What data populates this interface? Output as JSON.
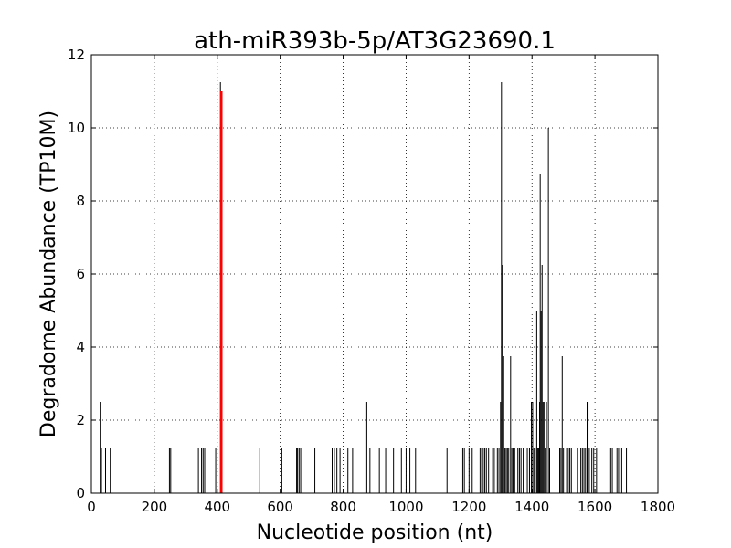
{
  "chart_data": {
    "type": "bar",
    "title": "ath-miR393b-5p/AT3G23690.1",
    "xlabel": "Nucleotide position (nt)",
    "ylabel": "Degradome Abundance (TP10M)",
    "xlim": [
      0,
      1800
    ],
    "ylim": [
      0,
      12
    ],
    "xticks": [
      0,
      200,
      400,
      600,
      800,
      1000,
      1200,
      1400,
      1600,
      1800
    ],
    "yticks": [
      0,
      2,
      4,
      6,
      8,
      10,
      12
    ],
    "grid": true,
    "colors": {
      "series": "#000000",
      "target": "#ff0000"
    },
    "series": [
      {
        "points": [
          [
            28,
            2.5
          ],
          [
            32,
            1.25
          ],
          [
            45,
            1.25
          ],
          [
            60,
            1.25
          ],
          [
            248,
            1.25
          ],
          [
            252,
            1.25
          ],
          [
            340,
            1.25
          ],
          [
            350,
            1.25
          ],
          [
            355,
            1.25
          ],
          [
            360,
            1.25
          ],
          [
            395,
            1.25
          ],
          [
            410,
            11.25
          ],
          [
            535,
            1.25
          ],
          [
            605,
            1.25
          ],
          [
            652,
            1.25
          ],
          [
            655,
            1.25
          ],
          [
            660,
            1.25
          ],
          [
            665,
            1.25
          ],
          [
            710,
            1.25
          ],
          [
            765,
            1.25
          ],
          [
            772,
            1.25
          ],
          [
            780,
            1.25
          ],
          [
            790,
            1.25
          ],
          [
            815,
            1.25
          ],
          [
            830,
            1.25
          ],
          [
            875,
            2.5
          ],
          [
            885,
            1.25
          ],
          [
            915,
            1.25
          ],
          [
            935,
            1.25
          ],
          [
            960,
            1.25
          ],
          [
            985,
            1.25
          ],
          [
            1000,
            1.25
          ],
          [
            1012,
            1.25
          ],
          [
            1030,
            1.25
          ],
          [
            1130,
            1.25
          ],
          [
            1180,
            1.25
          ],
          [
            1185,
            1.25
          ],
          [
            1200,
            1.25
          ],
          [
            1210,
            1.25
          ],
          [
            1235,
            1.25
          ],
          [
            1240,
            1.25
          ],
          [
            1245,
            1.25
          ],
          [
            1250,
            1.25
          ],
          [
            1255,
            1.25
          ],
          [
            1262,
            1.25
          ],
          [
            1275,
            1.25
          ],
          [
            1280,
            1.25
          ],
          [
            1290,
            1.25
          ],
          [
            1295,
            1.25
          ],
          [
            1300,
            2.5
          ],
          [
            1303,
            11.25
          ],
          [
            1306,
            6.25
          ],
          [
            1310,
            3.75
          ],
          [
            1314,
            1.25
          ],
          [
            1318,
            1.25
          ],
          [
            1322,
            1.25
          ],
          [
            1326,
            1.25
          ],
          [
            1332,
            3.75
          ],
          [
            1336,
            1.25
          ],
          [
            1340,
            1.25
          ],
          [
            1345,
            1.25
          ],
          [
            1355,
            1.25
          ],
          [
            1360,
            1.25
          ],
          [
            1365,
            1.25
          ],
          [
            1372,
            1.25
          ],
          [
            1385,
            1.25
          ],
          [
            1392,
            1.25
          ],
          [
            1398,
            2.5
          ],
          [
            1402,
            2.5
          ],
          [
            1406,
            1.25
          ],
          [
            1410,
            1.25
          ],
          [
            1415,
            5.0
          ],
          [
            1418,
            1.25
          ],
          [
            1421,
            1.25
          ],
          [
            1424,
            2.5
          ],
          [
            1426,
            8.75
          ],
          [
            1429,
            5.0
          ],
          [
            1432,
            6.25
          ],
          [
            1435,
            2.5
          ],
          [
            1438,
            2.5
          ],
          [
            1442,
            1.25
          ],
          [
            1446,
            2.5
          ],
          [
            1452,
            10.0
          ],
          [
            1456,
            1.25
          ],
          [
            1488,
            1.25
          ],
          [
            1492,
            1.25
          ],
          [
            1496,
            3.75
          ],
          [
            1500,
            1.25
          ],
          [
            1510,
            1.25
          ],
          [
            1515,
            1.25
          ],
          [
            1520,
            1.25
          ],
          [
            1525,
            1.25
          ],
          [
            1545,
            1.25
          ],
          [
            1555,
            1.25
          ],
          [
            1560,
            1.25
          ],
          [
            1565,
            1.25
          ],
          [
            1570,
            1.25
          ],
          [
            1575,
            2.5
          ],
          [
            1578,
            2.5
          ],
          [
            1582,
            1.25
          ],
          [
            1590,
            1.25
          ],
          [
            1596,
            1.25
          ],
          [
            1605,
            1.25
          ],
          [
            1650,
            1.25
          ],
          [
            1655,
            1.25
          ],
          [
            1670,
            1.25
          ],
          [
            1675,
            1.25
          ],
          [
            1685,
            1.25
          ],
          [
            1700,
            1.25
          ]
        ]
      },
      {
        "role": "target",
        "points": [
          [
            413,
            11.0
          ]
        ]
      }
    ]
  }
}
